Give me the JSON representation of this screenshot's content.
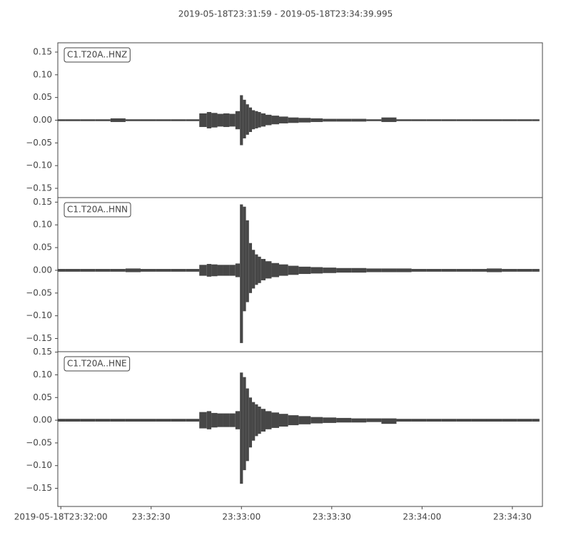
{
  "title": "2019-05-18T23:31:59  -  2019-05-18T23:34:39.995",
  "chart_data": [
    {
      "type": "waveform",
      "label": "C1.T20A..HNZ",
      "xlim": [
        0,
        160.995
      ],
      "ylim": [
        -0.1704,
        0.1704
      ],
      "yticks": [
        {
          "value": 0.15,
          "label": "0.15"
        },
        {
          "value": 0.1,
          "label": "0.10"
        },
        {
          "value": 0.05,
          "label": "0.05"
        },
        {
          "value": 0,
          "label": "0.00"
        },
        {
          "value": -0.05,
          "label": "−0.05"
        },
        {
          "value": -0.1,
          "label": "−0.10"
        },
        {
          "value": -0.15,
          "label": "−0.15"
        }
      ],
      "x": [
        0,
        5,
        10,
        15,
        20,
        25,
        30,
        35,
        40,
        45,
        49,
        50,
        52,
        54,
        56,
        58,
        60,
        61,
        62,
        63,
        64,
        65,
        66,
        67,
        68,
        70,
        72,
        75,
        78,
        82,
        86,
        90,
        95,
        100,
        105,
        110,
        115,
        120,
        125,
        130,
        135,
        140,
        145,
        150,
        155,
        160
      ],
      "series": [
        {
          "color": "#474747",
          "values": [
            0.002,
            0.002,
            0.002,
            0.002,
            0.004,
            0.002,
            0.002,
            0.002,
            0.002,
            0.002,
            0.015,
            0.018,
            0.016,
            0.014,
            0.015,
            0.014,
            0.02,
            0.055,
            0.045,
            0.035,
            0.028,
            0.022,
            0.02,
            0.018,
            0.015,
            0.012,
            0.01,
            0.008,
            0.006,
            0.005,
            0.004,
            0.003,
            0.003,
            0.003,
            0.002,
            0.006,
            0.002,
            0.002,
            0.002,
            0.002,
            0.002,
            0.002,
            0.002,
            0.002,
            0.002,
            0.002
          ]
        },
        {
          "color": "#474747",
          "values": [
            -0.002,
            -0.002,
            -0.002,
            -0.002,
            -0.004,
            -0.002,
            -0.002,
            -0.002,
            -0.002,
            -0.002,
            -0.015,
            -0.018,
            -0.016,
            -0.014,
            -0.015,
            -0.014,
            -0.02,
            -0.055,
            -0.04,
            -0.032,
            -0.026,
            -0.02,
            -0.018,
            -0.016,
            -0.014,
            -0.011,
            -0.009,
            -0.007,
            -0.006,
            -0.005,
            -0.004,
            -0.003,
            -0.003,
            -0.003,
            -0.002,
            -0.004,
            -0.002,
            -0.002,
            -0.002,
            -0.002,
            -0.002,
            -0.002,
            -0.002,
            -0.002,
            -0.002,
            -0.002
          ]
        }
      ]
    },
    {
      "type": "waveform",
      "label": "C1.T20A..HNN",
      "xlim": [
        0,
        160.995
      ],
      "ylim": [
        -0.179,
        0.16
      ],
      "yticks": [
        {
          "value": 0.15,
          "label": "0.15"
        },
        {
          "value": 0.1,
          "label": "0.10"
        },
        {
          "value": 0.05,
          "label": "0.05"
        },
        {
          "value": 0,
          "label": "0.00"
        },
        {
          "value": -0.05,
          "label": "−0.05"
        },
        {
          "value": -0.1,
          "label": "−0.10"
        },
        {
          "value": -0.15,
          "label": "−0.15"
        }
      ],
      "x": [
        0,
        5,
        10,
        15,
        20,
        25,
        30,
        35,
        40,
        45,
        49,
        50,
        52,
        54,
        56,
        58,
        60,
        61,
        62,
        63,
        64,
        65,
        66,
        67,
        68,
        70,
        72,
        75,
        78,
        82,
        86,
        90,
        95,
        100,
        105,
        110,
        115,
        120,
        125,
        130,
        135,
        140,
        145,
        150,
        155,
        160
      ],
      "series": [
        {
          "color": "#474747",
          "values": [
            0.003,
            0.003,
            0.003,
            0.003,
            0.003,
            0.004,
            0.003,
            0.003,
            0.003,
            0.003,
            0.012,
            0.014,
            0.013,
            0.012,
            0.012,
            0.012,
            0.015,
            0.145,
            0.14,
            0.11,
            0.06,
            0.045,
            0.035,
            0.03,
            0.025,
            0.02,
            0.016,
            0.013,
            0.01,
            0.008,
            0.007,
            0.006,
            0.005,
            0.005,
            0.004,
            0.004,
            0.004,
            0.003,
            0.003,
            0.003,
            0.003,
            0.003,
            0.004,
            0.003,
            0.003,
            0.003
          ]
        },
        {
          "color": "#474747",
          "values": [
            -0.003,
            -0.003,
            -0.003,
            -0.003,
            -0.003,
            -0.004,
            -0.003,
            -0.003,
            -0.003,
            -0.003,
            -0.012,
            -0.014,
            -0.013,
            -0.012,
            -0.012,
            -0.012,
            -0.015,
            -0.16,
            -0.09,
            -0.07,
            -0.05,
            -0.04,
            -0.032,
            -0.028,
            -0.022,
            -0.018,
            -0.015,
            -0.012,
            -0.01,
            -0.008,
            -0.007,
            -0.006,
            -0.005,
            -0.005,
            -0.004,
            -0.004,
            -0.004,
            -0.003,
            -0.003,
            -0.003,
            -0.003,
            -0.003,
            -0.004,
            -0.003,
            -0.003,
            -0.003
          ]
        }
      ]
    },
    {
      "type": "waveform",
      "label": "C1.T20A..HNE",
      "xlim": [
        0,
        160.995
      ],
      "ylim": [
        -0.19,
        0.151
      ],
      "yticks": [
        {
          "value": 0.15,
          "label": "0.15"
        },
        {
          "value": 0.1,
          "label": "0.10"
        },
        {
          "value": 0.05,
          "label": "0.05"
        },
        {
          "value": 0,
          "label": "0.00"
        },
        {
          "value": -0.05,
          "label": "−0.05"
        },
        {
          "value": -0.1,
          "label": "−0.10"
        },
        {
          "value": -0.15,
          "label": "−0.15"
        }
      ],
      "xticks": [
        {
          "value": 1,
          "label": "2019-05-18T23:32:00"
        },
        {
          "value": 31,
          "label": "23:32:30"
        },
        {
          "value": 61,
          "label": "23:33:00"
        },
        {
          "value": 91,
          "label": "23:33:30"
        },
        {
          "value": 121,
          "label": "23:34:00"
        },
        {
          "value": 151,
          "label": "23:34:30"
        }
      ],
      "x": [
        0,
        5,
        10,
        15,
        20,
        25,
        30,
        35,
        40,
        45,
        49,
        50,
        52,
        54,
        56,
        58,
        60,
        61,
        62,
        63,
        64,
        65,
        66,
        67,
        68,
        70,
        72,
        75,
        78,
        82,
        86,
        90,
        95,
        100,
        105,
        110,
        115,
        120,
        125,
        130,
        135,
        140,
        145,
        150,
        155,
        160
      ],
      "series": [
        {
          "color": "#474747",
          "values": [
            0.003,
            0.003,
            0.003,
            0.003,
            0.003,
            0.003,
            0.003,
            0.003,
            0.003,
            0.003,
            0.018,
            0.02,
            0.016,
            0.015,
            0.015,
            0.015,
            0.02,
            0.105,
            0.095,
            0.07,
            0.05,
            0.04,
            0.035,
            0.03,
            0.025,
            0.02,
            0.017,
            0.014,
            0.011,
            0.009,
            0.007,
            0.006,
            0.005,
            0.004,
            0.004,
            0.004,
            0.003,
            0.003,
            0.003,
            0.003,
            0.003,
            0.003,
            0.003,
            0.003,
            0.003,
            0.003
          ]
        },
        {
          "color": "#474747",
          "values": [
            -0.003,
            -0.003,
            -0.003,
            -0.003,
            -0.003,
            -0.003,
            -0.003,
            -0.003,
            -0.003,
            -0.003,
            -0.018,
            -0.02,
            -0.016,
            -0.015,
            -0.015,
            -0.015,
            -0.02,
            -0.14,
            -0.11,
            -0.09,
            -0.06,
            -0.045,
            -0.035,
            -0.03,
            -0.025,
            -0.02,
            -0.017,
            -0.014,
            -0.011,
            -0.009,
            -0.007,
            -0.006,
            -0.005,
            -0.005,
            -0.004,
            -0.008,
            -0.003,
            -0.003,
            -0.003,
            -0.003,
            -0.003,
            -0.003,
            -0.003,
            -0.003,
            -0.003,
            -0.003
          ]
        }
      ]
    }
  ]
}
